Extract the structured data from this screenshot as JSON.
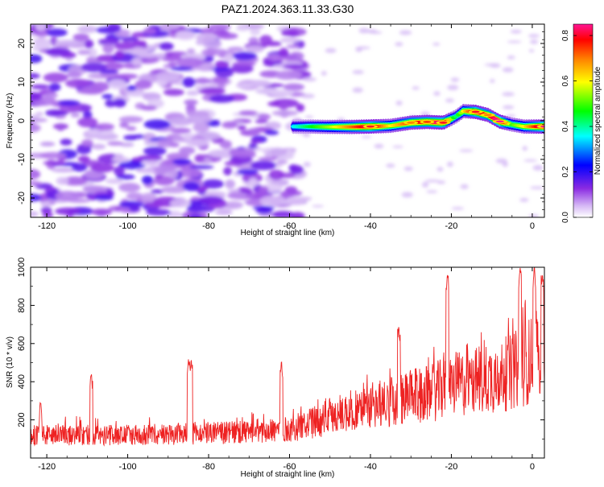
{
  "figure_title": "PAZ1.2024.363.11.33.G30",
  "chart_data": [
    {
      "type": "heatmap",
      "xlabel": "Height of straight line (km)",
      "ylabel": "Frequency (Hz)",
      "xlim": [
        -124,
        3
      ],
      "ylim": [
        -25,
        25
      ],
      "xticks": [
        -120,
        -100,
        -80,
        -60,
        -40,
        -20,
        0
      ],
      "yticks": [
        -20,
        -10,
        0,
        10,
        20
      ],
      "colorbar": {
        "label": "Normalized spectral amplitude",
        "range": [
          0,
          0.85
        ],
        "ticks": [
          0.0,
          0.2,
          0.4,
          0.6,
          0.8
        ],
        "colormap": [
          "#ffffff",
          "#c9a6f2",
          "#8a2be2",
          "#0000ff",
          "#00ffff",
          "#00ff00",
          "#ffff00",
          "#ff8000",
          "#ff0000",
          "#ff1493"
        ]
      },
      "noise_region_x": [
        -124,
        -57
      ],
      "signal_ridge": {
        "x": [
          -59,
          -55,
          -50,
          -45,
          -40,
          -35,
          -30,
          -26,
          -22,
          -19,
          -17,
          -14,
          -11,
          -8,
          -5,
          -2,
          3
        ],
        "frequency": [
          -1.5,
          -1.5,
          -1.6,
          -1.6,
          -1.5,
          -1.3,
          -0.5,
          -0.3,
          -0.5,
          1.0,
          2.5,
          2.3,
          1.5,
          -0.2,
          -1.0,
          -1.5,
          -1.5
        ],
        "peak_amplitude": [
          0.3,
          0.4,
          0.5,
          0.65,
          0.8,
          0.55,
          0.7,
          0.75,
          0.8,
          0.35,
          0.55,
          0.8,
          0.7,
          0.85,
          0.45,
          0.55,
          0.85
        ]
      }
    },
    {
      "type": "line",
      "xlabel": "Height of straight line (km)",
      "ylabel": "SNR (10 * v/v)",
      "xlim": [
        -124,
        3
      ],
      "ylim": [
        0,
        1000
      ],
      "xticks": [
        -120,
        -100,
        -80,
        -60,
        -40,
        -20,
        0
      ],
      "yticks": [
        200,
        400,
        600,
        800,
        1000
      ],
      "line_color": "#ee2222",
      "envelope": {
        "x": [
          -124,
          -110,
          -100,
          -90,
          -80,
          -70,
          -60,
          -55,
          -50,
          -45,
          -40,
          -35,
          -30,
          -25,
          -20,
          -15,
          -10,
          -5,
          0,
          3
        ],
        "baseline": [
          120,
          120,
          120,
          125,
          130,
          135,
          150,
          180,
          215,
          245,
          270,
          295,
          320,
          340,
          380,
          400,
          420,
          450,
          520,
          620
        ]
      },
      "spikes": [
        {
          "x": -121.5,
          "y": 300
        },
        {
          "x": -109,
          "y": 440
        },
        {
          "x": -85,
          "y": 520
        },
        {
          "x": -84.3,
          "y": 515
        },
        {
          "x": -62,
          "y": 510
        },
        {
          "x": -33,
          "y": 690
        },
        {
          "x": -21,
          "y": 960
        },
        {
          "x": -3,
          "y": 1000
        },
        {
          "x": 0.5,
          "y": 1000
        },
        {
          "x": 2.5,
          "y": 960
        }
      ]
    }
  ]
}
